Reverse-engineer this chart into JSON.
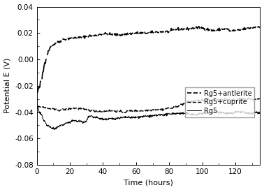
{
  "title": "",
  "xlabel": "Time (hours)",
  "ylabel": "Potential E (V)",
  "xlim": [
    0,
    135
  ],
  "ylim": [
    -0.08,
    0.04
  ],
  "xticks": [
    0,
    20,
    40,
    60,
    80,
    100,
    120
  ],
  "yticks": [
    -0.08,
    -0.06,
    -0.04,
    -0.02,
    0.0,
    0.02,
    0.04
  ],
  "legend": [
    "Rg5+antlerite",
    "Rg5+cuprite",
    "Rg5"
  ],
  "background_color": "#ffffff",
  "line_color": "#000000",
  "ant_segments": [
    [
      0.0,
      -0.026
    ],
    [
      0.5,
      -0.025
    ],
    [
      1.0,
      -0.022
    ],
    [
      1.8,
      -0.021
    ],
    [
      2.2,
      -0.017
    ],
    [
      3.0,
      -0.016
    ],
    [
      3.5,
      -0.01
    ],
    [
      4.0,
      -0.009
    ],
    [
      4.5,
      -0.003
    ],
    [
      5.2,
      -0.002
    ],
    [
      5.8,
      0.003
    ],
    [
      6.5,
      0.004
    ],
    [
      7.0,
      0.007
    ],
    [
      7.8,
      0.008
    ],
    [
      8.5,
      0.01
    ],
    [
      9.5,
      0.011
    ],
    [
      10.0,
      0.011
    ],
    [
      11.0,
      0.012
    ],
    [
      12.0,
      0.013
    ],
    [
      14.0,
      0.0135
    ],
    [
      15.0,
      0.015
    ],
    [
      18.0,
      0.0155
    ],
    [
      19.5,
      0.016
    ],
    [
      24.0,
      0.0165
    ],
    [
      26.0,
      0.0165
    ],
    [
      28.0,
      0.017
    ],
    [
      30.0,
      0.0175
    ],
    [
      33.0,
      0.018
    ],
    [
      35.0,
      0.018
    ],
    [
      37.0,
      0.0185
    ],
    [
      38.0,
      0.019
    ],
    [
      42.0,
      0.0195
    ],
    [
      44.0,
      0.019
    ],
    [
      47.0,
      0.019
    ],
    [
      49.0,
      0.0185
    ],
    [
      53.0,
      0.019
    ],
    [
      56.0,
      0.0195
    ],
    [
      60.0,
      0.02
    ],
    [
      63.0,
      0.02
    ],
    [
      67.0,
      0.02
    ],
    [
      70.0,
      0.0205
    ],
    [
      74.0,
      0.021
    ],
    [
      76.0,
      0.021
    ],
    [
      80.0,
      0.021
    ],
    [
      82.0,
      0.022
    ],
    [
      85.0,
      0.023
    ],
    [
      87.0,
      0.023
    ],
    [
      91.0,
      0.023
    ],
    [
      93.0,
      0.0235
    ],
    [
      97.0,
      0.024
    ],
    [
      99.0,
      0.024
    ],
    [
      103.0,
      0.023
    ],
    [
      105.0,
      0.022
    ],
    [
      109.0,
      0.022
    ],
    [
      111.0,
      0.023
    ],
    [
      115.0,
      0.023
    ],
    [
      117.0,
      0.0215
    ],
    [
      120.0,
      0.022
    ],
    [
      122.0,
      0.022
    ],
    [
      125.0,
      0.023
    ],
    [
      127.0,
      0.0235
    ],
    [
      130.0,
      0.024
    ],
    [
      132.0,
      0.0245
    ],
    [
      135.0,
      0.025
    ]
  ],
  "cup_segments": [
    [
      0.0,
      -0.036
    ],
    [
      4.0,
      -0.036
    ],
    [
      5.0,
      -0.037
    ],
    [
      9.0,
      -0.0375
    ],
    [
      10.5,
      -0.038
    ],
    [
      14.0,
      -0.0385
    ],
    [
      15.0,
      -0.038
    ],
    [
      18.0,
      -0.038
    ],
    [
      19.5,
      -0.0375
    ],
    [
      22.0,
      -0.037
    ],
    [
      23.0,
      -0.037
    ],
    [
      27.0,
      -0.0375
    ],
    [
      28.0,
      -0.038
    ],
    [
      32.0,
      -0.0385
    ],
    [
      34.0,
      -0.039
    ],
    [
      40.0,
      -0.0395
    ],
    [
      42.0,
      -0.039
    ],
    [
      47.0,
      -0.039
    ],
    [
      49.0,
      -0.0395
    ],
    [
      53.0,
      -0.04
    ],
    [
      56.0,
      -0.039
    ],
    [
      60.0,
      -0.039
    ],
    [
      63.0,
      -0.039
    ],
    [
      68.0,
      -0.0385
    ],
    [
      71.0,
      -0.038
    ],
    [
      76.0,
      -0.038
    ],
    [
      79.0,
      -0.037
    ],
    [
      82.0,
      -0.037
    ],
    [
      84.0,
      -0.036
    ],
    [
      86.5,
      -0.0345
    ],
    [
      88.0,
      -0.034
    ],
    [
      90.0,
      -0.033
    ],
    [
      92.0,
      -0.032
    ],
    [
      95.0,
      -0.0315
    ],
    [
      97.0,
      -0.031
    ],
    [
      102.0,
      -0.031
    ],
    [
      104.0,
      -0.0305
    ],
    [
      108.0,
      -0.031
    ],
    [
      110.0,
      -0.031
    ],
    [
      115.0,
      -0.03
    ],
    [
      117.0,
      -0.0305
    ],
    [
      120.0,
      -0.031
    ],
    [
      122.0,
      -0.03
    ],
    [
      127.0,
      -0.03
    ],
    [
      129.0,
      -0.03
    ],
    [
      132.0,
      -0.0305
    ],
    [
      133.5,
      -0.03
    ],
    [
      135.0,
      -0.03
    ]
  ],
  "rg5_segments": [
    [
      0.0,
      -0.036
    ],
    [
      1.0,
      -0.037
    ],
    [
      1.5,
      -0.04
    ],
    [
      3.0,
      -0.042
    ],
    [
      4.0,
      -0.046
    ],
    [
      5.0,
      -0.047
    ],
    [
      6.0,
      -0.05
    ],
    [
      8.0,
      -0.051
    ],
    [
      9.0,
      -0.052
    ],
    [
      11.0,
      -0.053
    ],
    [
      12.0,
      -0.052
    ],
    [
      14.0,
      -0.05
    ],
    [
      15.0,
      -0.05
    ],
    [
      17.0,
      -0.049
    ],
    [
      18.0,
      -0.048
    ],
    [
      20.0,
      -0.048
    ],
    [
      21.0,
      -0.047
    ],
    [
      23.0,
      -0.046
    ],
    [
      24.0,
      -0.047
    ],
    [
      27.0,
      -0.047
    ],
    [
      28.0,
      -0.048
    ],
    [
      30.0,
      -0.047
    ],
    [
      31.0,
      -0.044
    ],
    [
      33.0,
      -0.043
    ],
    [
      34.0,
      -0.044
    ],
    [
      36.0,
      -0.044
    ],
    [
      38.0,
      -0.045
    ],
    [
      42.0,
      -0.0455
    ],
    [
      44.0,
      -0.045
    ],
    [
      47.0,
      -0.045
    ],
    [
      49.0,
      -0.0445
    ],
    [
      53.0,
      -0.044
    ],
    [
      56.0,
      -0.044
    ],
    [
      60.0,
      -0.044
    ],
    [
      63.0,
      -0.0435
    ],
    [
      67.0,
      -0.043
    ],
    [
      70.0,
      -0.043
    ],
    [
      75.0,
      -0.042
    ],
    [
      78.0,
      -0.042
    ],
    [
      82.0,
      -0.041
    ],
    [
      84.0,
      -0.041
    ],
    [
      90.0,
      -0.041
    ],
    [
      93.0,
      -0.0415
    ],
    [
      97.0,
      -0.042
    ],
    [
      99.0,
      -0.041
    ],
    [
      105.0,
      -0.041
    ],
    [
      107.0,
      -0.04
    ],
    [
      112.0,
      -0.04
    ],
    [
      114.0,
      -0.041
    ],
    [
      118.0,
      -0.041
    ],
    [
      120.0,
      -0.04
    ],
    [
      125.0,
      -0.04
    ],
    [
      127.0,
      -0.041
    ],
    [
      130.0,
      -0.041
    ],
    [
      132.0,
      -0.04
    ],
    [
      135.0,
      -0.041
    ]
  ]
}
